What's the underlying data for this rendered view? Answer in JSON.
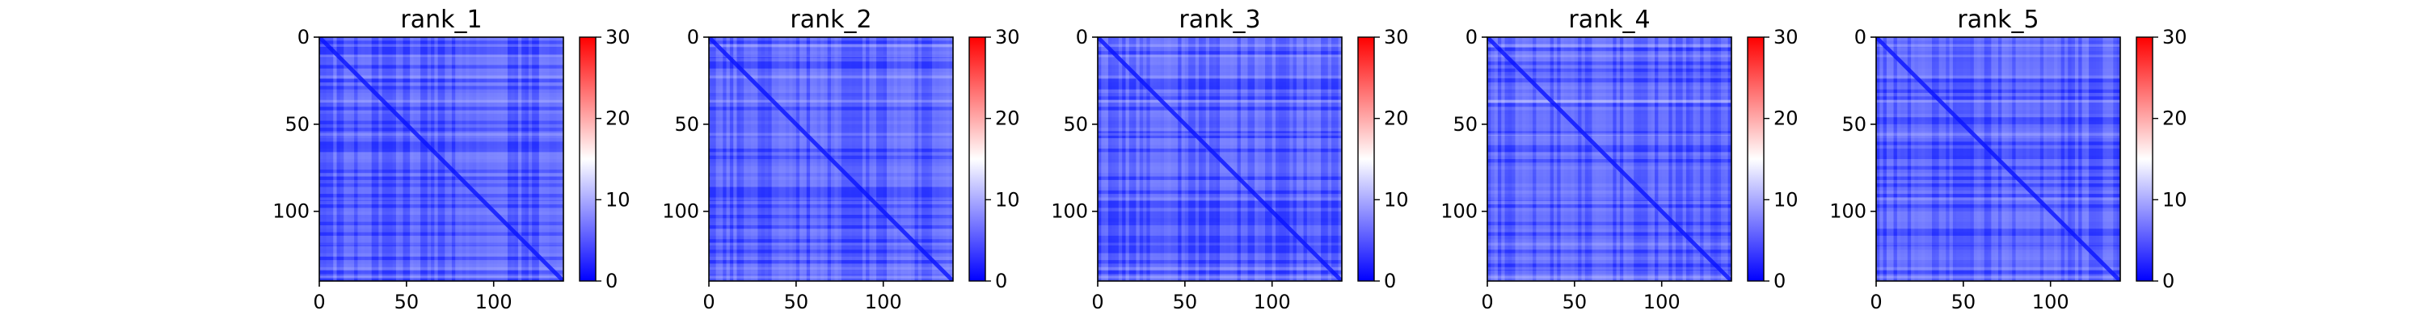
{
  "chart_data": [
    {
      "type": "heatmap",
      "title": "rank_1",
      "x_ticks": [
        "0",
        "50",
        "100"
      ],
      "y_ticks": [
        "0",
        "50",
        "100"
      ],
      "xlim": [
        0,
        140
      ],
      "ylim": [
        140,
        0
      ],
      "matrix_size": 140,
      "colorbar": {
        "ticks": [
          "0",
          "10",
          "20",
          "30"
        ],
        "range": [
          0,
          30
        ],
        "colormap": "bwr"
      }
    },
    {
      "type": "heatmap",
      "title": "rank_2",
      "x_ticks": [
        "0",
        "50",
        "100"
      ],
      "y_ticks": [
        "0",
        "50",
        "100"
      ],
      "xlim": [
        0,
        140
      ],
      "ylim": [
        140,
        0
      ],
      "matrix_size": 140,
      "colorbar": {
        "ticks": [
          "0",
          "10",
          "20",
          "30"
        ],
        "range": [
          0,
          30
        ],
        "colormap": "bwr"
      }
    },
    {
      "type": "heatmap",
      "title": "rank_3",
      "x_ticks": [
        "0",
        "50",
        "100"
      ],
      "y_ticks": [
        "0",
        "50",
        "100"
      ],
      "xlim": [
        0,
        140
      ],
      "ylim": [
        140,
        0
      ],
      "matrix_size": 140,
      "colorbar": {
        "ticks": [
          "0",
          "10",
          "20",
          "30"
        ],
        "range": [
          0,
          30
        ],
        "colormap": "bwr"
      }
    },
    {
      "type": "heatmap",
      "title": "rank_4",
      "x_ticks": [
        "0",
        "50",
        "100"
      ],
      "y_ticks": [
        "0",
        "50",
        "100"
      ],
      "xlim": [
        0,
        140
      ],
      "ylim": [
        140,
        0
      ],
      "matrix_size": 140,
      "colorbar": {
        "ticks": [
          "0",
          "10",
          "20",
          "30"
        ],
        "range": [
          0,
          30
        ],
        "colormap": "bwr"
      }
    },
    {
      "type": "heatmap",
      "title": "rank_5",
      "x_ticks": [
        "0",
        "50",
        "100"
      ],
      "y_ticks": [
        "0",
        "50",
        "100"
      ],
      "xlim": [
        0,
        140
      ],
      "ylim": [
        140,
        0
      ],
      "matrix_size": 140,
      "colorbar": {
        "ticks": [
          "0",
          "10",
          "20",
          "30"
        ],
        "range": [
          0,
          30
        ],
        "colormap": "bwr"
      }
    }
  ],
  "colors": {
    "low": "#0000ff",
    "mid": "#ffffff",
    "high": "#ff0000"
  }
}
